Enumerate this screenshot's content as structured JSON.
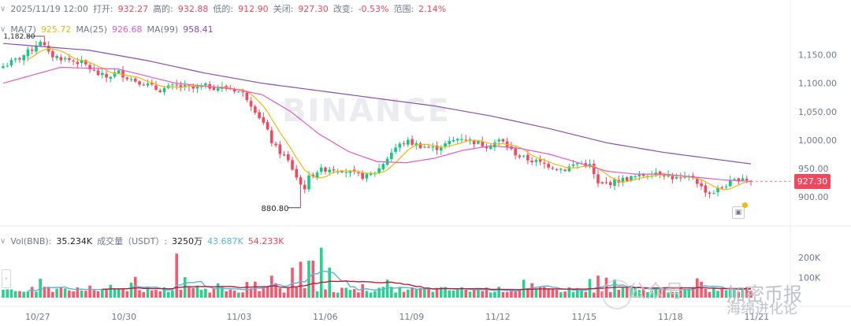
{
  "header": {
    "datetime": "2025/11/19 12:00",
    "open_label": "打开:",
    "open": "932.27",
    "high_label": "高的:",
    "high": "932.88",
    "low_label": "低的:",
    "low": "912.90",
    "close_label": "关闭:",
    "close": "927.30",
    "change_label": "改变:",
    "change": "-0.53%",
    "range_label": "范围:",
    "range": "2.14%"
  },
  "ma_legend": {
    "ma7_label": "MA(7)",
    "ma7": "925.72",
    "ma25_label": "MA(25)",
    "ma25": "926.68",
    "ma99_label": "MA(99)",
    "ma99": "958.41"
  },
  "vol_legend": {
    "vol_label": "Vol(BNB):",
    "vol": "35.234K",
    "turnover_label": "成交量（USDT）:",
    "turnover": "3250万",
    "ma1": "43.687K",
    "ma2": "54.233K"
  },
  "price_badge": "927.30",
  "watermarks": {
    "brand": "BINANCE",
    "gzh": "公众号",
    "title": "加密币报",
    "sub": "海绵进化论"
  },
  "colors": {
    "up": "#0ecb81",
    "down": "#f6465d",
    "ma7": "#f0b90b",
    "ma25": "#e659c4",
    "ma99": "#8e4bb5",
    "vol_ma1": "#56b7d6",
    "vol_ma2": "#b71c3c"
  },
  "chart_data": {
    "type": "candlestick",
    "symbol_unit": "USDT",
    "x_ticks": [
      "10/27",
      "10/30",
      "11/03",
      "11/06",
      "11/09",
      "11/12",
      "11/15",
      "11/18",
      "11/21"
    ],
    "y_ticks": [
      "1,150.00",
      "1,100.00",
      "1,050.00",
      "1,000.00",
      "950.00",
      "900.00"
    ],
    "ylim": [
      875,
      1180
    ],
    "annotations": {
      "max_label": "1,182.80",
      "min_label": "880.80"
    },
    "anchors": [
      {
        "day": 0.0,
        "close": 1130
      },
      {
        "day": 0.6,
        "close": 1145
      },
      {
        "day": 1.0,
        "close": 1160
      },
      {
        "day": 1.3,
        "close": 1176
      },
      {
        "day": 1.6,
        "close": 1150
      },
      {
        "day": 2.2,
        "close": 1142
      },
      {
        "day": 2.8,
        "close": 1135
      },
      {
        "day": 3.2,
        "close": 1118
      },
      {
        "day": 3.6,
        "close": 1110
      },
      {
        "day": 4.0,
        "close": 1120
      },
      {
        "day": 4.4,
        "close": 1108
      },
      {
        "day": 4.9,
        "close": 1100
      },
      {
        "day": 5.4,
        "close": 1088
      },
      {
        "day": 6.0,
        "close": 1095
      },
      {
        "day": 6.6,
        "close": 1090
      },
      {
        "day": 7.0,
        "close": 1095
      },
      {
        "day": 7.5,
        "close": 1092
      },
      {
        "day": 8.0,
        "close": 1090
      },
      {
        "day": 8.4,
        "close": 1080
      },
      {
        "day": 8.8,
        "close": 1050
      },
      {
        "day": 9.1,
        "close": 1025
      },
      {
        "day": 9.4,
        "close": 990
      },
      {
        "day": 9.7,
        "close": 975
      },
      {
        "day": 9.95,
        "close": 960
      },
      {
        "day": 10.1,
        "close": 945
      },
      {
        "day": 10.3,
        "close": 925
      },
      {
        "day": 10.45,
        "close": 912
      },
      {
        "day": 10.6,
        "close": 932
      },
      {
        "day": 10.9,
        "close": 945
      },
      {
        "day": 11.3,
        "close": 950
      },
      {
        "day": 11.8,
        "close": 948
      },
      {
        "day": 12.2,
        "close": 940
      },
      {
        "day": 12.6,
        "close": 935
      },
      {
        "day": 13.0,
        "close": 945
      },
      {
        "day": 13.3,
        "close": 965
      },
      {
        "day": 13.6,
        "close": 985
      },
      {
        "day": 14.0,
        "close": 998
      },
      {
        "day": 14.5,
        "close": 990
      },
      {
        "day": 15.0,
        "close": 985
      },
      {
        "day": 15.5,
        "close": 995
      },
      {
        "day": 15.9,
        "close": 1005
      },
      {
        "day": 16.3,
        "close": 998
      },
      {
        "day": 16.8,
        "close": 990
      },
      {
        "day": 17.3,
        "close": 1000
      },
      {
        "day": 17.7,
        "close": 980
      },
      {
        "day": 18.0,
        "close": 970
      },
      {
        "day": 18.5,
        "close": 962
      },
      {
        "day": 19.0,
        "close": 955
      },
      {
        "day": 19.5,
        "close": 948
      },
      {
        "day": 20.0,
        "close": 960
      },
      {
        "day": 20.4,
        "close": 955
      },
      {
        "day": 20.7,
        "close": 920
      },
      {
        "day": 21.1,
        "close": 925
      },
      {
        "day": 21.5,
        "close": 930
      },
      {
        "day": 22.0,
        "close": 935
      },
      {
        "day": 22.4,
        "close": 940
      },
      {
        "day": 22.8,
        "close": 945
      },
      {
        "day": 23.2,
        "close": 935
      },
      {
        "day": 23.6,
        "close": 930
      },
      {
        "day": 24.0,
        "close": 935
      },
      {
        "day": 24.3,
        "close": 915
      },
      {
        "day": 24.6,
        "close": 905
      },
      {
        "day": 24.9,
        "close": 915
      },
      {
        "day": 25.3,
        "close": 925
      },
      {
        "day": 25.7,
        "close": 935
      },
      {
        "day": 26.0,
        "close": 927
      }
    ],
    "ma25_curve": [
      {
        "day": 0,
        "v": 1100
      },
      {
        "day": 2,
        "v": 1128
      },
      {
        "day": 4,
        "v": 1125
      },
      {
        "day": 6,
        "v": 1100
      },
      {
        "day": 8,
        "v": 1090
      },
      {
        "day": 9,
        "v": 1080
      },
      {
        "day": 10,
        "v": 1050
      },
      {
        "day": 11,
        "v": 1010
      },
      {
        "day": 12,
        "v": 980
      },
      {
        "day": 13,
        "v": 962
      },
      {
        "day": 14,
        "v": 960
      },
      {
        "day": 15,
        "v": 968
      },
      {
        "day": 16,
        "v": 982
      },
      {
        "day": 17,
        "v": 990
      },
      {
        "day": 18,
        "v": 985
      },
      {
        "day": 19,
        "v": 975
      },
      {
        "day": 20,
        "v": 960
      },
      {
        "day": 21,
        "v": 945
      },
      {
        "day": 22,
        "v": 940
      },
      {
        "day": 23,
        "v": 940
      },
      {
        "day": 24,
        "v": 935
      },
      {
        "day": 25,
        "v": 930
      },
      {
        "day": 26,
        "v": 927
      }
    ],
    "ma99_curve": [
      {
        "day": 0,
        "v": 1170
      },
      {
        "day": 3,
        "v": 1158
      },
      {
        "day": 5,
        "v": 1140
      },
      {
        "day": 7,
        "v": 1118
      },
      {
        "day": 9,
        "v": 1100
      },
      {
        "day": 12,
        "v": 1080
      },
      {
        "day": 15,
        "v": 1060
      },
      {
        "day": 17,
        "v": 1042
      },
      {
        "day": 19,
        "v": 1020
      },
      {
        "day": 21,
        "v": 995
      },
      {
        "day": 23,
        "v": 978
      },
      {
        "day": 24.5,
        "v": 968
      },
      {
        "day": 26,
        "v": 958
      }
    ],
    "volume": {
      "y_ticks": [
        "200K",
        "100K"
      ],
      "ylim": [
        0,
        260000
      ],
      "spikes": [
        {
          "day": 1.3,
          "v": 95000
        },
        {
          "day": 4.4,
          "v": 75000
        },
        {
          "day": 6.0,
          "v": 220000
        },
        {
          "day": 8.8,
          "v": 80000
        },
        {
          "day": 9.4,
          "v": 110000
        },
        {
          "day": 10.0,
          "v": 150000
        },
        {
          "day": 10.4,
          "v": 180000
        },
        {
          "day": 10.7,
          "v": 185000
        },
        {
          "day": 11.0,
          "v": 250000
        },
        {
          "day": 11.3,
          "v": 150000
        },
        {
          "day": 13.3,
          "v": 90000
        },
        {
          "day": 20.7,
          "v": 110000
        },
        {
          "day": 21.0,
          "v": 100000
        },
        {
          "day": 24.3,
          "v": 80000
        }
      ]
    }
  }
}
